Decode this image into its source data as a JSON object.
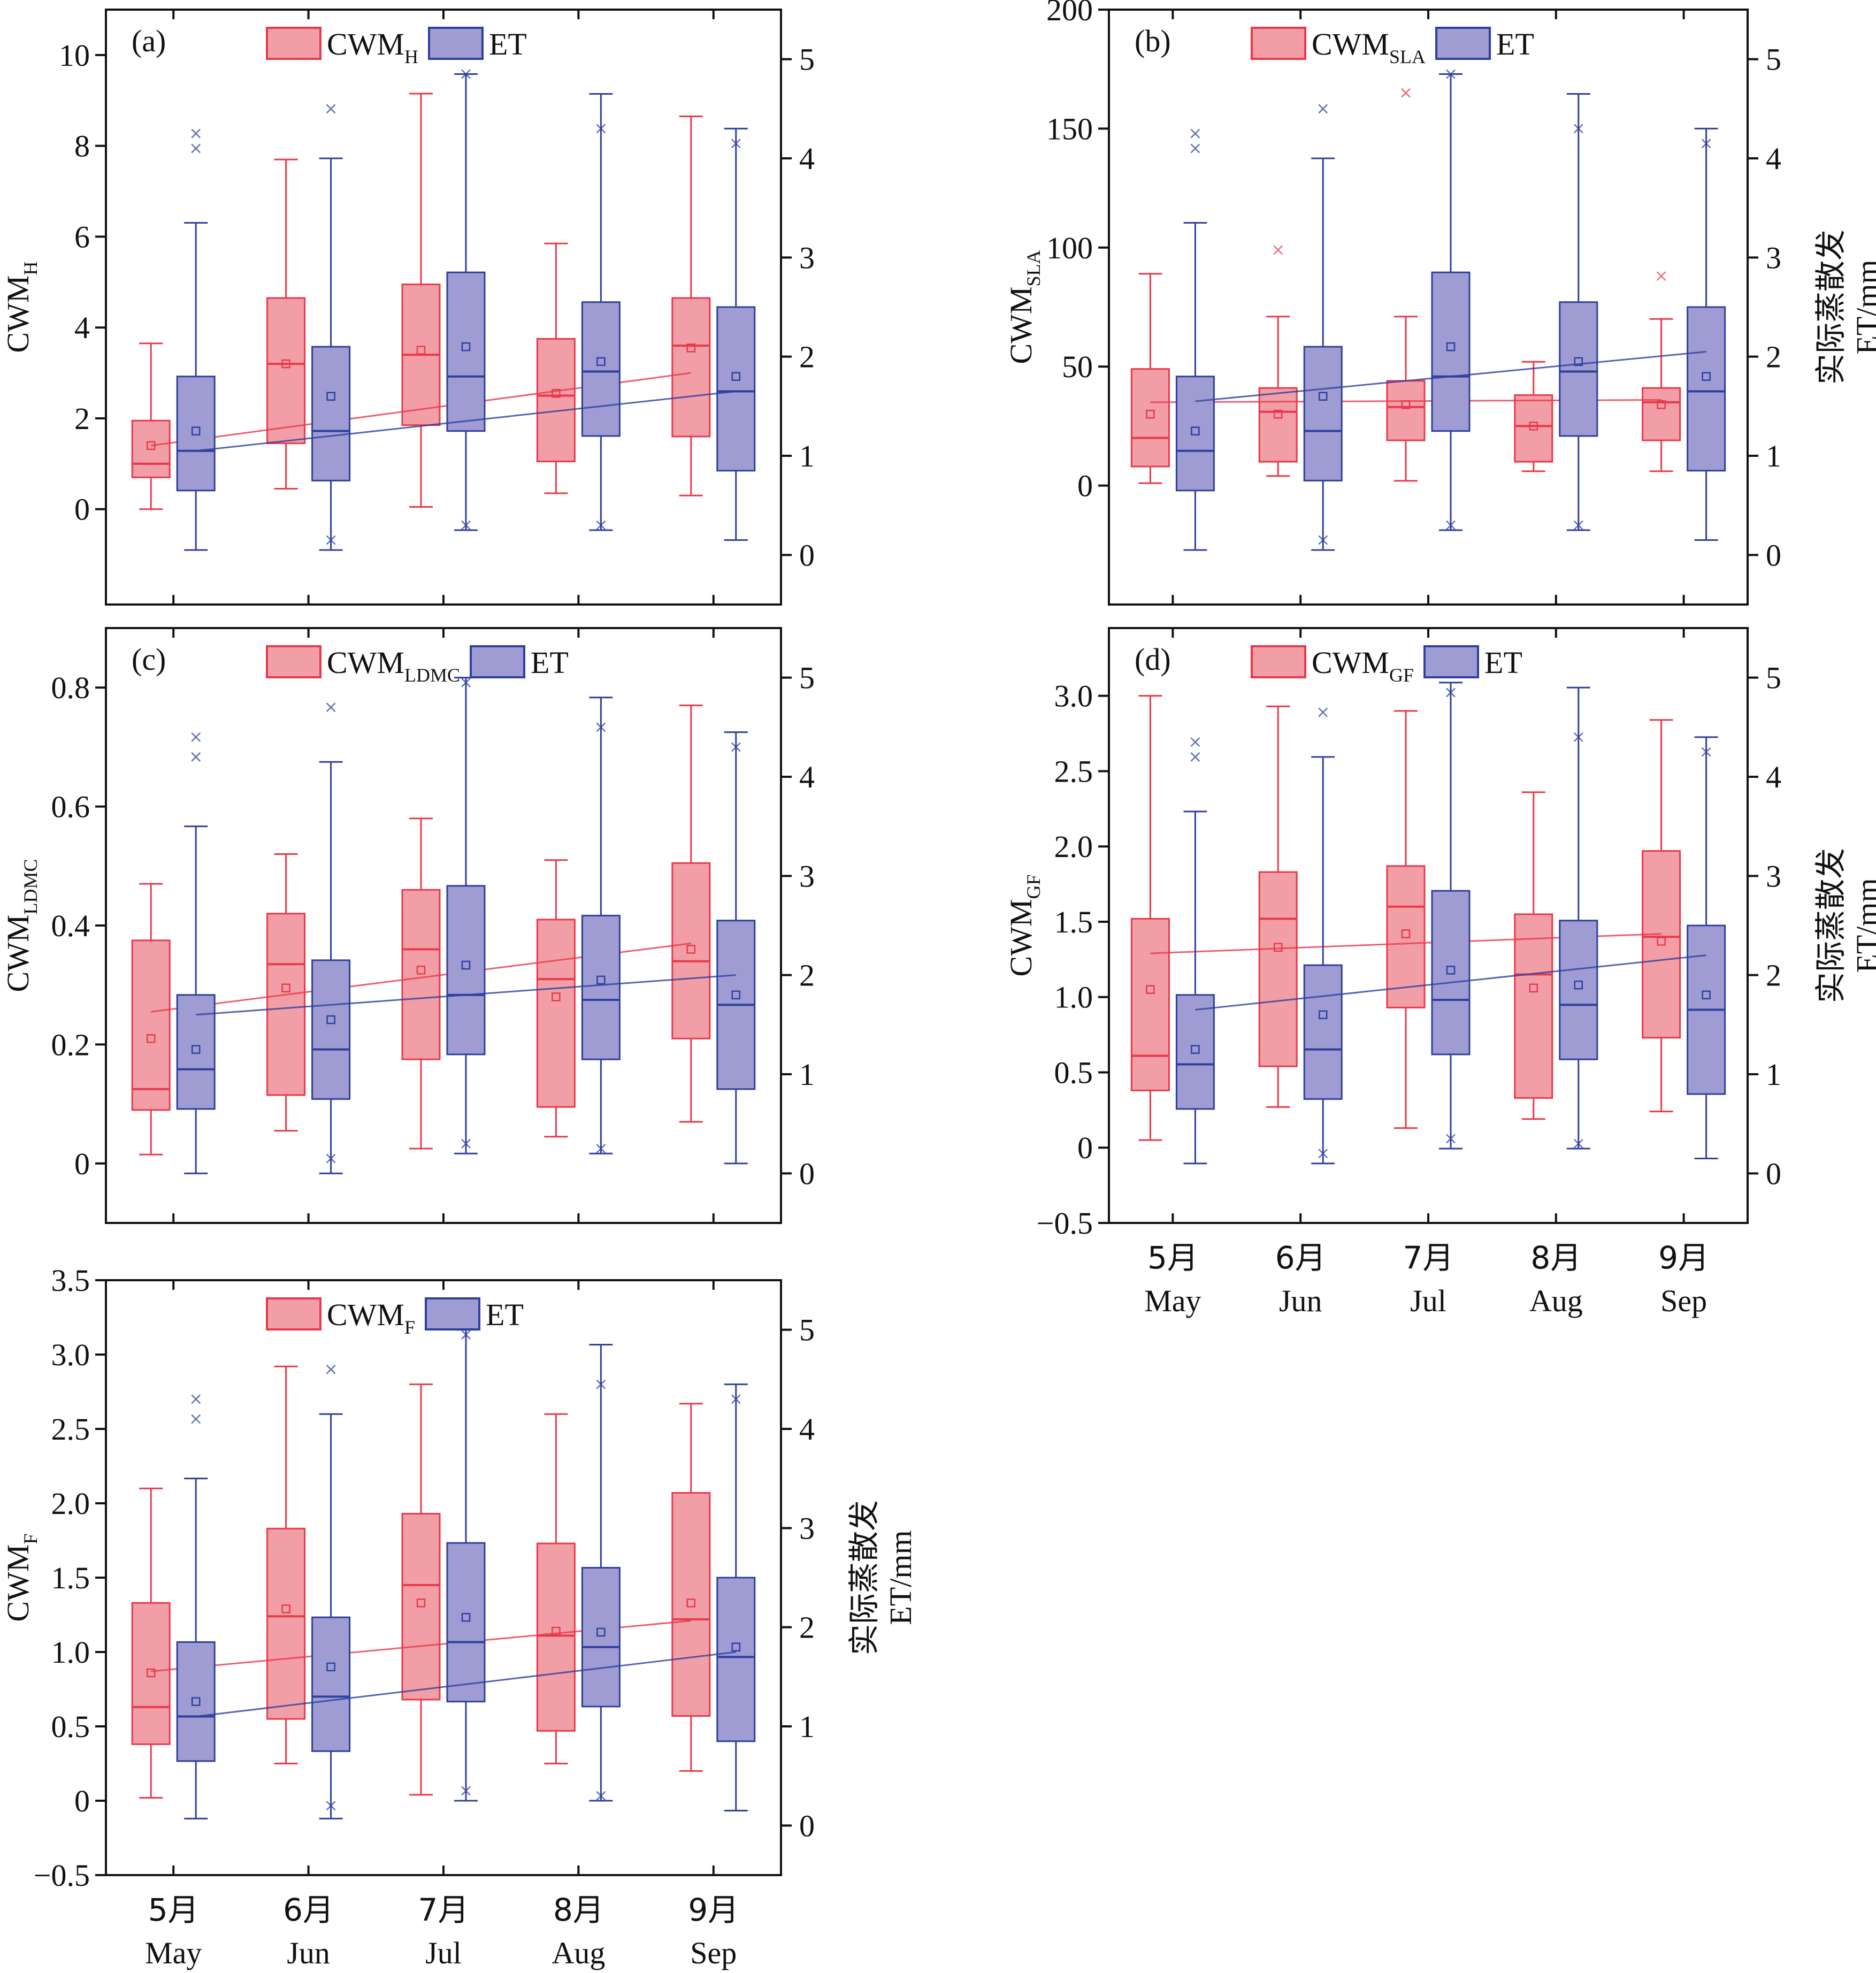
{
  "chart_data": [
    {
      "id": "a",
      "panel_label": "(a)",
      "type": "box",
      "categories": [
        "May",
        "Jun",
        "Jul",
        "Aug",
        "Sep"
      ],
      "ylabel": {
        "base": "CWM",
        "sub": "H"
      },
      "legend": [
        {
          "base": "CWM",
          "sub": "H"
        },
        {
          "base": "ET",
          "sub": ""
        }
      ],
      "ylim": [
        -2.1,
        11
      ],
      "yticks": [
        "0",
        "2",
        "4",
        "6",
        "8",
        "10"
      ],
      "yticks_values": [
        0,
        2,
        4,
        6,
        8,
        10
      ],
      "y2lim": [
        -0.5,
        5.5
      ],
      "y2ticks": [
        "0",
        "1",
        "2",
        "3",
        "4",
        "5"
      ],
      "y2label": [],
      "xticks": [],
      "series": [
        {
          "name": "CWM_H",
          "axis": "left",
          "color": "#e8394a",
          "fill": "#f29ea6",
          "boxes": [
            {
              "q1": 0.7,
              "med": 1.0,
              "q3": 1.95,
              "wlo": 0.0,
              "whi": 3.65,
              "mean": 1.4
            },
            {
              "q1": 1.45,
              "med": 3.2,
              "q3": 4.65,
              "wlo": 0.45,
              "whi": 7.7,
              "mean": 3.2
            },
            {
              "q1": 1.85,
              "med": 3.4,
              "q3": 4.95,
              "wlo": 0.05,
              "whi": 9.15,
              "mean": 3.5
            },
            {
              "q1": 1.05,
              "med": 2.5,
              "q3": 3.75,
              "wlo": 0.35,
              "whi": 5.85,
              "mean": 2.55
            },
            {
              "q1": 1.6,
              "med": 3.6,
              "q3": 4.65,
              "wlo": 0.3,
              "whi": 8.65,
              "mean": 3.55
            }
          ],
          "trend": [
            1.4,
            3.0
          ]
        },
        {
          "name": "ET",
          "axis": "right",
          "color": "#2e3f9e",
          "fill": "#9e9cd3",
          "boxes": [
            {
              "q1": 0.65,
              "med": 1.05,
              "q3": 1.8,
              "wlo": 0.05,
              "whi": 3.35,
              "mean": 1.25,
              "outliers": [
                4.1,
                4.25
              ]
            },
            {
              "q1": 0.75,
              "med": 1.25,
              "q3": 2.1,
              "wlo": 0.05,
              "whi": 4.0,
              "mean": 1.6,
              "outliers": [
                0.15,
                4.5
              ]
            },
            {
              "q1": 1.25,
              "med": 1.8,
              "q3": 2.85,
              "wlo": 0.25,
              "whi": 4.85,
              "mean": 2.1,
              "outliers": [
                0.3,
                4.85
              ]
            },
            {
              "q1": 1.2,
              "med": 1.85,
              "q3": 2.55,
              "wlo": 0.25,
              "whi": 4.65,
              "mean": 1.95,
              "outliers": [
                0.3,
                4.3
              ]
            },
            {
              "q1": 0.85,
              "med": 1.65,
              "q3": 2.5,
              "wlo": 0.15,
              "whi": 4.3,
              "mean": 1.8,
              "outliers": [
                4.15
              ]
            }
          ],
          "trend": [
            1.05,
            1.65
          ]
        }
      ]
    },
    {
      "id": "b",
      "panel_label": "(b)",
      "type": "box",
      "categories": [
        "May",
        "Jun",
        "Jul",
        "Aug",
        "Sep"
      ],
      "ylabel": {
        "base": "CWM",
        "sub": "SLA"
      },
      "legend": [
        {
          "base": "CWM",
          "sub": "SLA"
        },
        {
          "base": "ET",
          "sub": ""
        }
      ],
      "ylim": [
        -50,
        200
      ],
      "yticks": [
        "0",
        "50",
        "100",
        "150",
        "200"
      ],
      "yticks_values": [
        0,
        50,
        100,
        150,
        200
      ],
      "y2lim": [
        -0.5,
        5.5
      ],
      "y2ticks": [
        "0",
        "1",
        "2",
        "3",
        "4",
        "5"
      ],
      "y2label": [
        "实际蒸散发",
        "ET/mm"
      ],
      "xticks": [],
      "series": [
        {
          "name": "CWM_SLA",
          "axis": "left",
          "color": "#e8394a",
          "fill": "#f29ea6",
          "boxes": [
            {
              "q1": 8,
              "med": 20,
              "q3": 49,
              "wlo": 1,
              "whi": 89,
              "mean": 30
            },
            {
              "q1": 10,
              "med": 31,
              "q3": 41,
              "wlo": 4,
              "whi": 71,
              "mean": 30,
              "outliers": [
                99
              ]
            },
            {
              "q1": 19,
              "med": 33,
              "q3": 44,
              "wlo": 2,
              "whi": 71,
              "mean": 34,
              "outliers": [
                165
              ]
            },
            {
              "q1": 10,
              "med": 25,
              "q3": 38,
              "wlo": 6,
              "whi": 52,
              "mean": 25
            },
            {
              "q1": 19,
              "med": 35,
              "q3": 41,
              "wlo": 6,
              "whi": 70,
              "mean": 34,
              "outliers": [
                88
              ]
            }
          ],
          "trend": [
            35,
            36
          ]
        },
        {
          "name": "ET",
          "axis": "right",
          "color": "#2e3f9e",
          "fill": "#9e9cd3",
          "boxes": [
            {
              "q1": 0.65,
              "med": 1.05,
              "q3": 1.8,
              "wlo": 0.05,
              "whi": 3.35,
              "mean": 1.25,
              "outliers": [
                4.1,
                4.25
              ]
            },
            {
              "q1": 0.75,
              "med": 1.25,
              "q3": 2.1,
              "wlo": 0.05,
              "whi": 4.0,
              "mean": 1.6,
              "outliers": [
                0.15,
                4.5
              ]
            },
            {
              "q1": 1.25,
              "med": 1.8,
              "q3": 2.85,
              "wlo": 0.25,
              "whi": 4.85,
              "mean": 2.1,
              "outliers": [
                0.3,
                4.85
              ]
            },
            {
              "q1": 1.2,
              "med": 1.85,
              "q3": 2.55,
              "wlo": 0.25,
              "whi": 4.65,
              "mean": 1.95,
              "outliers": [
                0.3,
                4.3
              ]
            },
            {
              "q1": 0.85,
              "med": 1.65,
              "q3": 2.5,
              "wlo": 0.15,
              "whi": 4.3,
              "mean": 1.8,
              "outliers": [
                4.15
              ]
            }
          ],
          "trend": [
            1.55,
            2.05
          ]
        }
      ]
    },
    {
      "id": "c",
      "panel_label": "(c)",
      "type": "box",
      "categories": [
        "May",
        "Jun",
        "Jul",
        "Aug",
        "Sep"
      ],
      "ylabel": {
        "base": "CWM",
        "sub": "LDMC"
      },
      "legend": [
        {
          "base": "CWM",
          "sub": "LDMC"
        },
        {
          "base": "ET",
          "sub": ""
        }
      ],
      "ylim": [
        -0.1,
        0.9
      ],
      "yticks": [
        "0",
        "0.2",
        "0.4",
        "0.6",
        "0.8"
      ],
      "yticks_values": [
        0,
        0.2,
        0.4,
        0.6,
        0.8
      ],
      "y2lim": [
        -0.5,
        5.5
      ],
      "y2ticks": [
        "0",
        "1",
        "2",
        "3",
        "4",
        "5"
      ],
      "y2label": [],
      "xticks": [],
      "series": [
        {
          "name": "CWM_LDMC",
          "axis": "left",
          "color": "#e8394a",
          "fill": "#f29ea6",
          "boxes": [
            {
              "q1": 0.09,
              "med": 0.125,
              "q3": 0.375,
              "wlo": 0.015,
              "whi": 0.47,
              "mean": 0.21
            },
            {
              "q1": 0.115,
              "med": 0.335,
              "q3": 0.42,
              "wlo": 0.055,
              "whi": 0.52,
              "mean": 0.295
            },
            {
              "q1": 0.175,
              "med": 0.36,
              "q3": 0.46,
              "wlo": 0.025,
              "whi": 0.58,
              "mean": 0.325
            },
            {
              "q1": 0.095,
              "med": 0.31,
              "q3": 0.41,
              "wlo": 0.045,
              "whi": 0.51,
              "mean": 0.28
            },
            {
              "q1": 0.21,
              "med": 0.34,
              "q3": 0.505,
              "wlo": 0.07,
              "whi": 0.77,
              "mean": 0.36
            }
          ],
          "trend": [
            0.255,
            0.37
          ]
        },
        {
          "name": "ET",
          "axis": "right",
          "color": "#2e3f9e",
          "fill": "#9e9cd3",
          "boxes": [
            {
              "q1": 0.65,
              "med": 1.05,
              "q3": 1.8,
              "wlo": 0.0,
              "whi": 3.5,
              "mean": 1.25,
              "outliers": [
                4.2,
                4.4
              ]
            },
            {
              "q1": 0.75,
              "med": 1.25,
              "q3": 2.15,
              "wlo": 0.0,
              "whi": 4.15,
              "mean": 1.55,
              "outliers": [
                0.15,
                4.7
              ]
            },
            {
              "q1": 1.2,
              "med": 1.8,
              "q3": 2.9,
              "wlo": 0.2,
              "whi": 5.0,
              "mean": 2.1,
              "outliers": [
                0.3,
                4.95
              ]
            },
            {
              "q1": 1.15,
              "med": 1.75,
              "q3": 2.6,
              "wlo": 0.2,
              "whi": 4.8,
              "mean": 1.95,
              "outliers": [
                0.25,
                4.5
              ]
            },
            {
              "q1": 0.85,
              "med": 1.7,
              "q3": 2.55,
              "wlo": 0.1,
              "whi": 4.45,
              "mean": 1.8,
              "outliers": [
                4.3
              ]
            }
          ],
          "trend": [
            1.6,
            2.0
          ]
        }
      ]
    },
    {
      "id": "d",
      "panel_label": "(d)",
      "type": "box",
      "categories": [
        "May",
        "Jun",
        "Jul",
        "Aug",
        "Sep"
      ],
      "ylabel": {
        "base": "CWM",
        "sub": "GF"
      },
      "legend": [
        {
          "base": "CWM",
          "sub": "GF"
        },
        {
          "base": "ET",
          "sub": ""
        }
      ],
      "ylim": [
        -0.5,
        3.45
      ],
      "yticks": [
        "−0.5",
        "0",
        "0.5",
        "1.0",
        "1.5",
        "2.0",
        "2.5",
        "3.0"
      ],
      "yticks_values": [
        -0.5,
        0,
        0.5,
        1.0,
        1.5,
        2.0,
        2.5,
        3.0
      ],
      "y2lim": [
        -0.5,
        5.5
      ],
      "y2ticks": [
        "0",
        "1",
        "2",
        "3",
        "4",
        "5"
      ],
      "y2label": [
        "实际蒸散发",
        "ET/mm"
      ],
      "xticks": [
        {
          "zh": "5月",
          "en": "May"
        },
        {
          "zh": "6月",
          "en": "Jun"
        },
        {
          "zh": "7月",
          "en": "Jul"
        },
        {
          "zh": "8月",
          "en": "Aug"
        },
        {
          "zh": "9月",
          "en": "Sep"
        }
      ],
      "series": [
        {
          "name": "CWM_GF",
          "axis": "left",
          "color": "#e8394a",
          "fill": "#f29ea6",
          "boxes": [
            {
              "q1": 0.38,
              "med": 0.61,
              "q3": 1.52,
              "wlo": 0.05,
              "whi": 3.0,
              "mean": 1.05
            },
            {
              "q1": 0.54,
              "med": 1.52,
              "q3": 1.83,
              "wlo": 0.27,
              "whi": 2.93,
              "mean": 1.33
            },
            {
              "q1": 0.93,
              "med": 1.6,
              "q3": 1.87,
              "wlo": 0.13,
              "whi": 2.9,
              "mean": 1.42
            },
            {
              "q1": 0.33,
              "med": 1.15,
              "q3": 1.55,
              "wlo": 0.19,
              "whi": 2.36,
              "mean": 1.06
            },
            {
              "q1": 0.73,
              "med": 1.4,
              "q3": 1.97,
              "wlo": 0.24,
              "whi": 2.84,
              "mean": 1.37
            }
          ],
          "trend": [
            1.29,
            1.42
          ]
        },
        {
          "name": "ET",
          "axis": "right",
          "color": "#2e3f9e",
          "fill": "#9e9cd3",
          "boxes": [
            {
              "q1": 0.65,
              "med": 1.1,
              "q3": 1.8,
              "wlo": 0.1,
              "whi": 3.65,
              "mean": 1.25,
              "outliers": [
                4.2,
                4.35
              ]
            },
            {
              "q1": 0.75,
              "med": 1.25,
              "q3": 2.1,
              "wlo": 0.1,
              "whi": 4.2,
              "mean": 1.6,
              "outliers": [
                0.2,
                4.65
              ]
            },
            {
              "q1": 1.2,
              "med": 1.75,
              "q3": 2.85,
              "wlo": 0.25,
              "whi": 4.95,
              "mean": 2.05,
              "outliers": [
                0.35,
                4.85
              ]
            },
            {
              "q1": 1.15,
              "med": 1.7,
              "q3": 2.55,
              "wlo": 0.25,
              "whi": 4.9,
              "mean": 1.9,
              "outliers": [
                0.3,
                4.4
              ]
            },
            {
              "q1": 0.8,
              "med": 1.65,
              "q3": 2.5,
              "wlo": 0.15,
              "whi": 4.4,
              "mean": 1.8,
              "outliers": [
                4.25
              ]
            }
          ],
          "trend": [
            1.65,
            2.2
          ]
        }
      ]
    },
    {
      "id": "e",
      "panel_label": "",
      "type": "box",
      "categories": [
        "May",
        "Jun",
        "Jul",
        "Aug",
        "Sep"
      ],
      "ylabel": {
        "base": "CWM",
        "sub": "F"
      },
      "legend": [
        {
          "base": "CWM",
          "sub": "F"
        },
        {
          "base": "ET",
          "sub": ""
        }
      ],
      "ylim": [
        -0.5,
        3.5
      ],
      "yticks": [
        "−0.5",
        "0",
        "0.5",
        "1.0",
        "1.5",
        "2.0",
        "2.5",
        "3.0",
        "3.5"
      ],
      "yticks_values": [
        -0.5,
        0,
        0.5,
        1.0,
        1.5,
        2.0,
        2.5,
        3.0,
        3.5
      ],
      "y2lim": [
        -0.5,
        5.5
      ],
      "y2ticks": [
        "0",
        "1",
        "2",
        "3",
        "4",
        "5"
      ],
      "y2label": [
        "实际蒸散发",
        "ET/mm"
      ],
      "xticks": [
        {
          "zh": "5月",
          "en": "May"
        },
        {
          "zh": "6月",
          "en": "Jun"
        },
        {
          "zh": "7月",
          "en": "Jul"
        },
        {
          "zh": "8月",
          "en": "Aug"
        },
        {
          "zh": "9月",
          "en": "Sep"
        }
      ],
      "series": [
        {
          "name": "CWM_F",
          "axis": "left",
          "color": "#e8394a",
          "fill": "#f29ea6",
          "boxes": [
            {
              "q1": 0.38,
              "med": 0.63,
              "q3": 1.33,
              "wlo": 0.02,
              "whi": 2.1,
              "mean": 0.86
            },
            {
              "q1": 0.55,
              "med": 1.24,
              "q3": 1.83,
              "wlo": 0.25,
              "whi": 2.92,
              "mean": 1.29
            },
            {
              "q1": 0.68,
              "med": 1.45,
              "q3": 1.93,
              "wlo": 0.04,
              "whi": 2.8,
              "mean": 1.33
            },
            {
              "q1": 0.47,
              "med": 1.11,
              "q3": 1.73,
              "wlo": 0.25,
              "whi": 2.6,
              "mean": 1.14
            },
            {
              "q1": 0.57,
              "med": 1.22,
              "q3": 2.07,
              "wlo": 0.2,
              "whi": 2.67,
              "mean": 1.33
            }
          ],
          "trend": [
            0.87,
            1.21
          ]
        },
        {
          "name": "ET",
          "axis": "right",
          "color": "#2e3f9e",
          "fill": "#9e9cd3",
          "boxes": [
            {
              "q1": 0.65,
              "med": 1.1,
              "q3": 1.85,
              "wlo": 0.07,
              "whi": 3.5,
              "mean": 1.25,
              "outliers": [
                4.1,
                4.3
              ]
            },
            {
              "q1": 0.75,
              "med": 1.3,
              "q3": 2.1,
              "wlo": 0.07,
              "whi": 4.15,
              "mean": 1.6,
              "outliers": [
                0.2,
                4.6
              ]
            },
            {
              "q1": 1.25,
              "med": 1.85,
              "q3": 2.85,
              "wlo": 0.25,
              "whi": 5.0,
              "mean": 2.1,
              "outliers": [
                0.35,
                4.95
              ]
            },
            {
              "q1": 1.2,
              "med": 1.8,
              "q3": 2.6,
              "wlo": 0.25,
              "whi": 4.85,
              "mean": 1.95,
              "outliers": [
                0.3,
                4.45
              ]
            },
            {
              "q1": 0.85,
              "med": 1.7,
              "q3": 2.5,
              "wlo": 0.15,
              "whi": 4.45,
              "mean": 1.8,
              "outliers": [
                4.3
              ]
            }
          ],
          "trend": [
            1.1,
            1.75
          ]
        }
      ]
    }
  ]
}
